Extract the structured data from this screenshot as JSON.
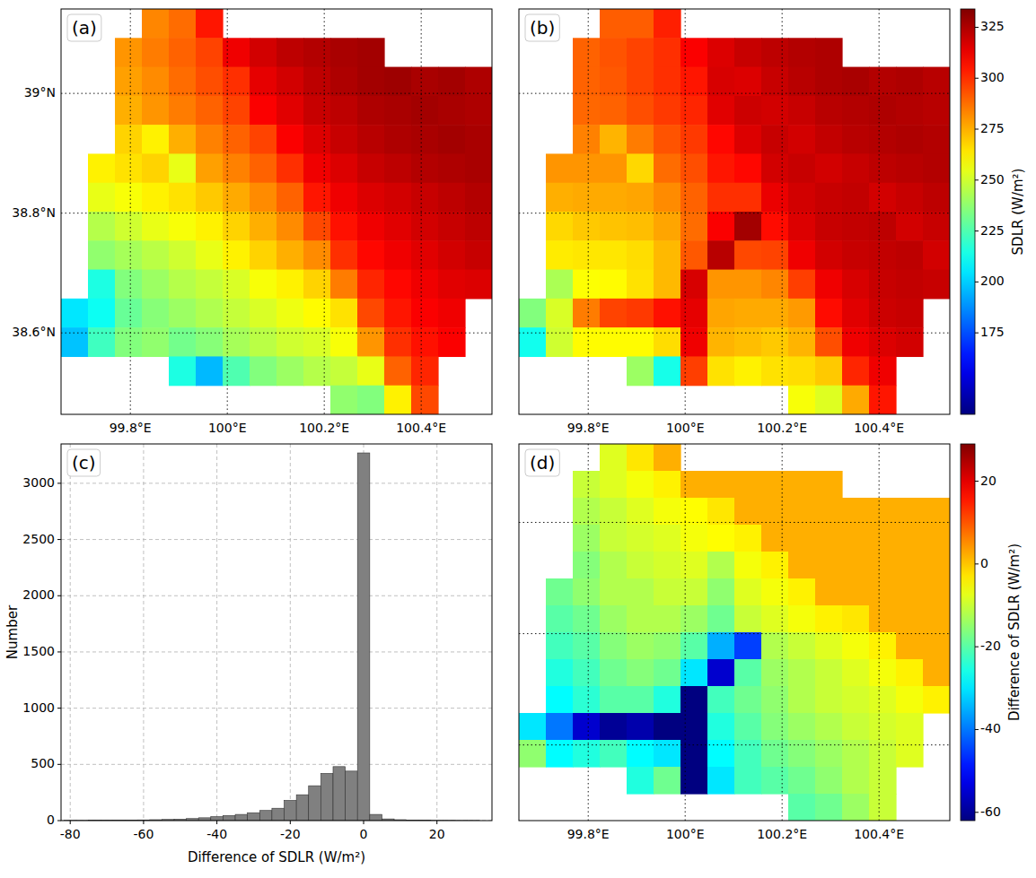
{
  "chart_data": [
    {
      "type": "heatmap",
      "title": "(a)",
      "xlim": [
        99.657,
        100.546
      ],
      "ylim": [
        38.464,
        39.141
      ],
      "xticks": [
        {
          "value": 99.8,
          "label": "99.8°E"
        },
        {
          "value": 100,
          "label": "100°E"
        },
        {
          "value": 100.2,
          "label": "100.2°E"
        },
        {
          "value": 100.4,
          "label": "100.4°E"
        }
      ],
      "yticks": [
        {
          "value": 38.6,
          "label": "38.6°N"
        },
        {
          "value": 38.8,
          "label": "38.8°N"
        },
        {
          "value": 39,
          "label": "39°N"
        }
      ],
      "grid": true,
      "tick_labels": true,
      "cells": [
        [
          null,
          null,
          null,
          283,
          288,
          305,
          null,
          null,
          null,
          null,
          null,
          null,
          null,
          null,
          null,
          null
        ],
        [
          null,
          null,
          280,
          285,
          290,
          296,
          312,
          318,
          322,
          324,
          326,
          327,
          null,
          null,
          null,
          null
        ],
        [
          null,
          null,
          278,
          282,
          288,
          294,
          300,
          314,
          318,
          322,
          325,
          327,
          328,
          326,
          327,
          325
        ],
        [
          null,
          null,
          275,
          280,
          285,
          290,
          296,
          310,
          315,
          320,
          322,
          325,
          326,
          327,
          326,
          325
        ],
        [
          null,
          null,
          268,
          262,
          275,
          284,
          290,
          296,
          310,
          316,
          320,
          323,
          325,
          326,
          327,
          326
        ],
        [
          null,
          262,
          265,
          268,
          255,
          278,
          284,
          290,
          300,
          312,
          316,
          320,
          322,
          324,
          325,
          326
        ],
        [
          null,
          255,
          258,
          262,
          265,
          270,
          276,
          282,
          290,
          305,
          312,
          316,
          318,
          320,
          322,
          324
        ],
        [
          null,
          245,
          250,
          255,
          258,
          262,
          268,
          275,
          282,
          295,
          306,
          312,
          315,
          318,
          320,
          322
        ],
        [
          null,
          238,
          242,
          246,
          250,
          255,
          262,
          268,
          275,
          282,
          300,
          308,
          312,
          315,
          318,
          320
        ],
        [
          null,
          215,
          235,
          240,
          245,
          248,
          252,
          258,
          262,
          268,
          285,
          302,
          308,
          312,
          315,
          316
        ],
        [
          205,
          212,
          230,
          236,
          240,
          244,
          248,
          252,
          256,
          260,
          265,
          295,
          305,
          310,
          312,
          null
        ],
        [
          198,
          222,
          235,
          238,
          232,
          236,
          242,
          246,
          250,
          252,
          258,
          280,
          300,
          306,
          310,
          null
        ],
        [
          null,
          null,
          null,
          null,
          215,
          196,
          225,
          235,
          240,
          245,
          248,
          255,
          290,
          302,
          null,
          null
        ],
        [
          null,
          null,
          null,
          null,
          null,
          null,
          null,
          null,
          null,
          null,
          238,
          235,
          262,
          295,
          null,
          null
        ]
      ]
    },
    {
      "type": "heatmap",
      "title": "(b)",
      "xlim": [
        99.657,
        100.546
      ],
      "ylim": [
        38.464,
        39.141
      ],
      "xticks": [
        {
          "value": 99.8,
          "label": "99.8°E"
        },
        {
          "value": 100,
          "label": "100°E"
        },
        {
          "value": 100.2,
          "label": "100.2°E"
        },
        {
          "value": 100.4,
          "label": "100.4°E"
        }
      ],
      "yticks": [
        38.6,
        38.8,
        39
      ],
      "grid": true,
      "tick_labels": "x",
      "colorbar": {
        "label": "SDLR (W/m²)",
        "range": [
          135,
          334
        ],
        "ticks": [
          175,
          200,
          225,
          250,
          275,
          300,
          325
        ]
      },
      "cells": [
        [
          null,
          null,
          null,
          291,
          291,
          303,
          null,
          null,
          null,
          null,
          null,
          null,
          null,
          null,
          null,
          null
        ],
        [
          null,
          null,
          290,
          293,
          296,
          300,
          310,
          316,
          320,
          322,
          324,
          325,
          null,
          null,
          null,
          null
        ],
        [
          null,
          null,
          290,
          292,
          296,
          300,
          305,
          317,
          316,
          320,
          323,
          325,
          326,
          324,
          325,
          323
        ],
        [
          null,
          null,
          289,
          290,
          294,
          298,
          302,
          315,
          319,
          318,
          320,
          323,
          324,
          325,
          324,
          323
        ],
        [
          null,
          null,
          284,
          274,
          285,
          293,
          298,
          308,
          316,
          320,
          318,
          321,
          323,
          324,
          325,
          324
        ],
        [
          null,
          280,
          280,
          280,
          267,
          288,
          294,
          305,
          308,
          318,
          320,
          318,
          320,
          322,
          323,
          324
        ],
        [
          null,
          275,
          276,
          276,
          277,
          282,
          290,
          300,
          300,
          313,
          318,
          320,
          321,
          318,
          320,
          322
        ],
        [
          null,
          267,
          270,
          271,
          272,
          277,
          288,
          310,
          327,
          307,
          316,
          320,
          321,
          322,
          318,
          320
        ],
        [
          null,
          263,
          264,
          264,
          266,
          273,
          292,
          323,
          295,
          296,
          312,
          318,
          320,
          321,
          322,
          318
        ],
        [
          null,
          243,
          259,
          260,
          265,
          273,
          317,
          280,
          280,
          283,
          297,
          312,
          317,
          320,
          321,
          320
        ],
        [
          235,
          252,
          285,
          296,
          298,
          306,
          314,
          277,
          276,
          276,
          279,
          307,
          315,
          319,
          320,
          null
        ],
        [
          213,
          250,
          260,
          260,
          260,
          266,
          312,
          274,
          272,
          270,
          274,
          294,
          312,
          316,
          318,
          null
        ],
        [
          null,
          null,
          null,
          null,
          240,
          214,
          297,
          265,
          262,
          265,
          266,
          270,
          302,
          312,
          null,
          null
        ],
        [
          null,
          null,
          null,
          null,
          null,
          null,
          null,
          null,
          null,
          null,
          258,
          253,
          276,
          305,
          null,
          null
        ]
      ]
    },
    {
      "type": "histogram",
      "title": "(c)",
      "x_label": "Difference of SDLR (W/m²)",
      "y_label": "Number",
      "bins": [
        -81.67,
        -78.33,
        -75,
        -71.67,
        -68.33,
        -65,
        -61.67,
        -58.33,
        -55,
        -51.67,
        -48.33,
        -45,
        -41.67,
        -38.33,
        -35,
        -31.67,
        -28.33,
        -25,
        -21.67,
        -18.33,
        -15,
        -11.67,
        -8.33,
        -5,
        -1.67,
        1.67,
        5,
        8.33,
        11.67,
        15,
        18.33,
        21.67,
        25,
        28.33,
        31.67
      ],
      "values": [
        2,
        2,
        3,
        3,
        4,
        5,
        6,
        8,
        10,
        12,
        18,
        25,
        35,
        45,
        55,
        70,
        90,
        110,
        180,
        230,
        310,
        420,
        480,
        440,
        3270,
        55,
        15,
        8,
        5,
        3,
        2,
        2,
        1,
        1
      ],
      "color": "#808080",
      "xlim": [
        -82.5,
        35
      ],
      "ylim": [
        0,
        3350
      ],
      "xticks": [
        -80,
        -60,
        -40,
        -20,
        0,
        20
      ],
      "yticks": [
        0,
        500,
        1000,
        1500,
        2000,
        2500,
        3000
      ],
      "grid": true
    },
    {
      "type": "heatmap",
      "title": "(d)",
      "xlim": [
        99.657,
        100.546
      ],
      "ylim": [
        38.464,
        39.141
      ],
      "xticks": [
        {
          "value": 99.8,
          "label": "99.8°E"
        },
        {
          "value": 100,
          "label": "100°E"
        },
        {
          "value": 100.2,
          "label": "100.2°E"
        },
        {
          "value": 100.4,
          "label": "100.4°E"
        }
      ],
      "yticks": [
        38.6,
        38.8,
        39
      ],
      "grid": true,
      "tick_labels": "x",
      "colorbar": {
        "label": "Difference of SDLR (W/m²)",
        "range": [
          -62,
          29
        ],
        "ticks": [
          -60,
          -40,
          -20,
          0,
          20
        ]
      },
      "cells": [
        [
          null,
          null,
          null,
          -8,
          -3,
          2,
          null,
          null,
          null,
          null,
          null,
          null,
          null,
          null,
          null,
          null
        ],
        [
          null,
          null,
          -10,
          -8,
          -6,
          -4,
          2,
          2,
          2,
          2,
          2,
          2,
          null,
          null,
          null,
          null
        ],
        [
          null,
          null,
          -12,
          -10,
          -8,
          -6,
          -5,
          -3,
          2,
          2,
          2,
          2,
          2,
          2,
          2,
          2
        ],
        [
          null,
          null,
          -14,
          -10,
          -9,
          -8,
          -6,
          -5,
          -4,
          2,
          2,
          2,
          2,
          2,
          2,
          2
        ],
        [
          null,
          null,
          -16,
          -12,
          -10,
          -9,
          -8,
          -12,
          -6,
          -4,
          2,
          2,
          2,
          2,
          2,
          2
        ],
        [
          null,
          -18,
          -15,
          -12,
          -12,
          -10,
          -10,
          -15,
          -8,
          -6,
          -4,
          2,
          2,
          2,
          2,
          2
        ],
        [
          null,
          -20,
          -18,
          -14,
          -12,
          -12,
          -14,
          -18,
          -10,
          -8,
          -6,
          -4,
          -3,
          2,
          2,
          2
        ],
        [
          null,
          -22,
          -20,
          -16,
          -14,
          -15,
          -20,
          -35,
          -45,
          -12,
          -10,
          -8,
          -6,
          -4,
          2,
          2
        ],
        [
          null,
          -25,
          -22,
          -18,
          -16,
          -18,
          -30,
          -55,
          -20,
          -14,
          -12,
          -10,
          -8,
          -6,
          -4,
          2
        ],
        [
          null,
          -28,
          -24,
          -20,
          -20,
          -25,
          -65,
          -22,
          -18,
          -15,
          -12,
          -10,
          -9,
          -8,
          -6,
          -4
        ],
        [
          -30,
          -40,
          -55,
          -60,
          -58,
          -62,
          -66,
          -25,
          -20,
          -16,
          -14,
          -12,
          -10,
          -9,
          -8,
          null
        ],
        [
          -15,
          -28,
          -25,
          -22,
          -28,
          -30,
          -70,
          -28,
          -22,
          -18,
          -16,
          -14,
          -12,
          -10,
          -8,
          null
        ],
        [
          null,
          null,
          null,
          null,
          -25,
          -18,
          -72,
          -30,
          -22,
          -20,
          -18,
          -15,
          -12,
          -10,
          null,
          null
        ],
        [
          null,
          null,
          null,
          null,
          null,
          null,
          null,
          null,
          null,
          null,
          -20,
          -18,
          -14,
          -10,
          null,
          null
        ]
      ]
    }
  ]
}
